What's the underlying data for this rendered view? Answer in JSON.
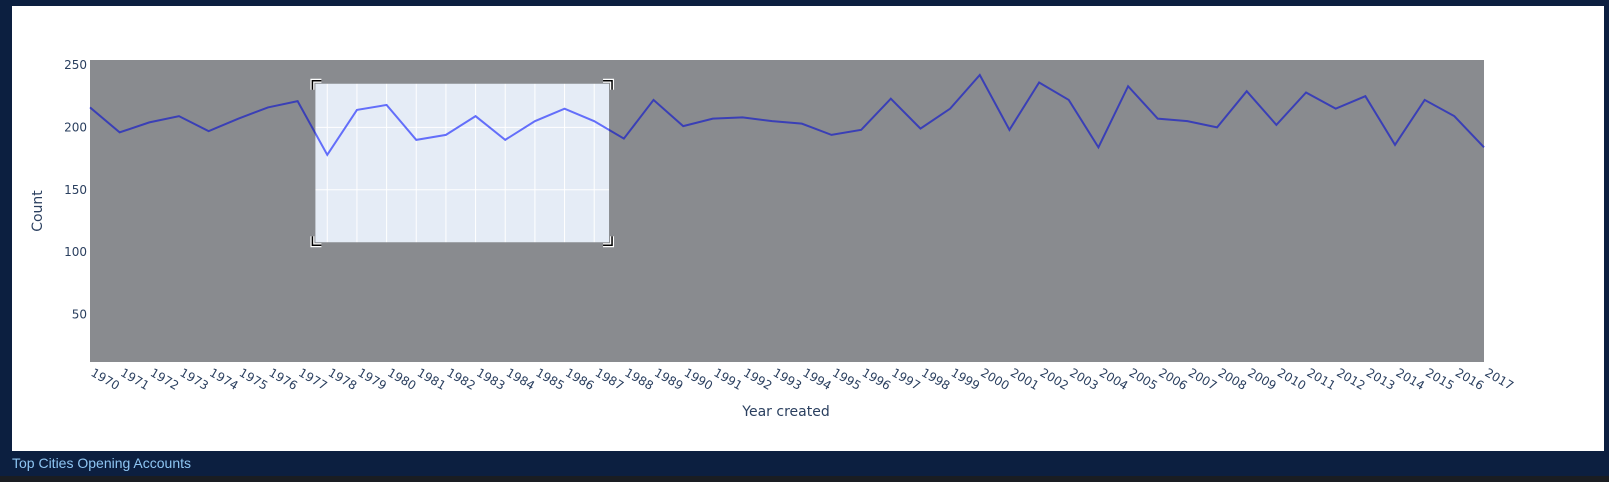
{
  "footer": {
    "section_title": "Top Cities Opening Accounts"
  },
  "chart_data": {
    "type": "line",
    "xlabel": "Year created",
    "ylabel": "Count",
    "ylim": [
      12,
      254
    ],
    "yticks": [
      50,
      100,
      150,
      200,
      250
    ],
    "x": [
      1970,
      1971,
      1972,
      1973,
      1974,
      1975,
      1976,
      1977,
      1978,
      1979,
      1980,
      1981,
      1982,
      1983,
      1984,
      1985,
      1986,
      1987,
      1988,
      1989,
      1990,
      1991,
      1992,
      1993,
      1994,
      1995,
      1996,
      1997,
      1998,
      1999,
      2000,
      2001,
      2002,
      2003,
      2004,
      2005,
      2006,
      2007,
      2008,
      2009,
      2010,
      2011,
      2012,
      2013,
      2014,
      2015,
      2016,
      2017
    ],
    "series": [
      {
        "values": [
          216,
          196,
          204,
          209,
          197,
          207,
          216,
          221,
          178,
          214,
          218,
          190,
          194,
          209,
          190,
          205,
          215,
          205,
          191,
          222,
          201,
          207,
          208,
          205,
          203,
          194,
          198,
          223,
          199,
          215,
          242,
          198,
          236,
          222,
          184,
          233,
          207,
          205,
          200,
          229,
          202,
          228,
          215,
          225,
          186,
          222,
          209,
          184
        ]
      }
    ],
    "selection": {
      "x_range": [
        1977.6,
        1987.5
      ],
      "y_range": [
        108,
        235
      ]
    },
    "grid": true,
    "colors": {
      "line": "#3a3fb6",
      "plot_bg": "#e5ecf6",
      "dim_overlay": "#898b8f",
      "axis_text": "#2a3f5f"
    }
  }
}
